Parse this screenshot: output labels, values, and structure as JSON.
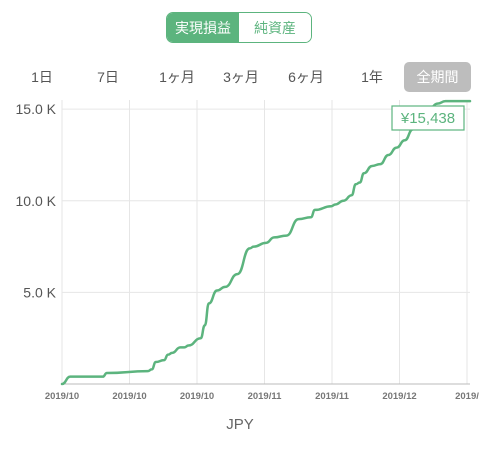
{
  "tabs": [
    {
      "label": "実現損益",
      "active": true
    },
    {
      "label": "純資産",
      "active": false
    }
  ],
  "ranges": [
    {
      "label": "1日",
      "active": false
    },
    {
      "label": "7日",
      "active": false
    },
    {
      "label": "1ヶ月",
      "active": false
    },
    {
      "label": "3ヶ月",
      "active": false
    },
    {
      "label": "6ヶ月",
      "active": false
    },
    {
      "label": "1年",
      "active": false
    },
    {
      "label": "全期間",
      "active": true
    }
  ],
  "colors": {
    "accent": "#5cb47e",
    "range_active_bg": "#bdbdbd",
    "grid": "#e6e6e6"
  },
  "chart_data": {
    "type": "line",
    "ylim": [
      0,
      15500
    ],
    "y_ticks": [
      {
        "value": 5000,
        "label": "5.0 K"
      },
      {
        "value": 10000,
        "label": "10.0 K"
      },
      {
        "value": 15000,
        "label": "15.0 K"
      }
    ],
    "x_tick_labels": [
      "2019/10",
      "2019/10",
      "2019/10",
      "2019/11",
      "2019/11",
      "2019/12",
      "2019/"
    ],
    "value_label": "¥15,438",
    "series": [
      {
        "x": [
          0.0,
          0.02,
          0.1,
          0.11,
          0.21,
          0.22,
          0.23,
          0.25,
          0.26,
          0.27,
          0.29,
          0.3,
          0.31,
          0.34,
          0.35,
          0.36,
          0.38,
          0.4,
          0.43,
          0.46,
          0.47,
          0.5,
          0.52,
          0.55,
          0.58,
          0.61,
          0.62,
          0.66,
          0.67,
          0.69,
          0.71,
          0.72,
          0.73,
          0.74,
          0.76,
          0.78,
          0.8,
          0.82,
          0.84,
          0.86,
          0.88,
          0.9,
          0.92,
          0.94,
          0.96,
          0.99,
          1.0
        ],
        "values": [
          0,
          400,
          400,
          600,
          700,
          800,
          1200,
          1300,
          1600,
          1700,
          2000,
          2000,
          2100,
          2500,
          3200,
          4400,
          5100,
          5300,
          6000,
          7400,
          7500,
          7700,
          8000,
          8100,
          9000,
          9100,
          9500,
          9700,
          9800,
          10000,
          10300,
          10900,
          11000,
          11500,
          11900,
          12000,
          12500,
          12900,
          13300,
          13900,
          14500,
          15000,
          15300,
          15438,
          15438,
          15438,
          15438
        ]
      }
    ]
  },
  "currency_label": "JPY"
}
